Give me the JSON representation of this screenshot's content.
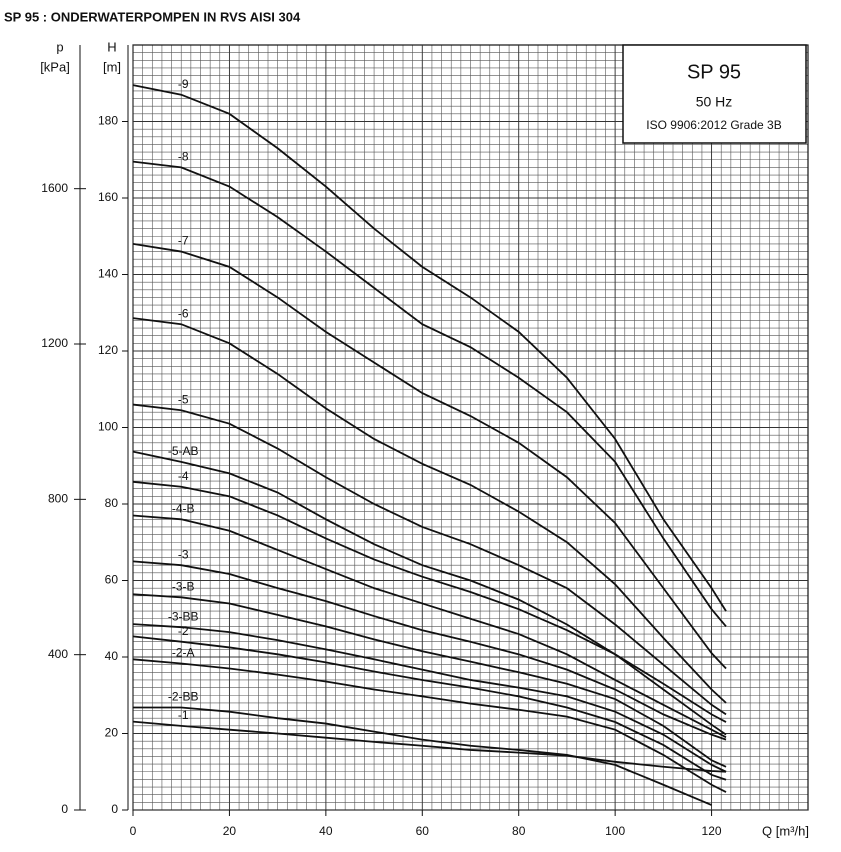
{
  "chart_data": {
    "type": "line",
    "title": "SP 95 : ONDERWATERPOMPEN IN RVS AISI 304",
    "annotations": [
      "SP 95",
      "50 Hz",
      "ISO 9906:2012 Grade 3B"
    ],
    "x_label": "Q [m³/h]",
    "y_label": "H",
    "y_unit": "[m]",
    "y2_label": "p",
    "y2_unit": "[kPa]",
    "x": [
      0,
      10,
      20,
      30,
      40,
      50,
      60,
      70,
      80,
      90,
      100,
      110,
      120,
      123
    ],
    "xlim": [
      0,
      140
    ],
    "xticks": [
      0,
      20,
      40,
      60,
      80,
      100,
      120
    ],
    "ylim": [
      0,
      200
    ],
    "yticks": [
      0,
      20,
      40,
      60,
      80,
      100,
      120,
      140,
      160,
      180
    ],
    "y2lim": [
      0,
      1970
    ],
    "y2ticks": [
      0,
      400,
      800,
      1200,
      1600
    ],
    "grid": true,
    "series": [
      {
        "name": "-9",
        "color": "#111111",
        "values": [
          189.5,
          187,
          182,
          173,
          163,
          152,
          142,
          134,
          125,
          113,
          97,
          76,
          58,
          52
        ]
      },
      {
        "name": "-8",
        "color": "#111111",
        "values": [
          169.5,
          168,
          163,
          155,
          146,
          136.5,
          127,
          121,
          113,
          104,
          91,
          71,
          52.5,
          48
        ]
      },
      {
        "name": "-7",
        "color": "#111111",
        "values": [
          148,
          146,
          142,
          134,
          125,
          117,
          109,
          103,
          96,
          87,
          75,
          58,
          41,
          37
        ]
      },
      {
        "name": "-6",
        "color": "#111111",
        "values": [
          128.6,
          127,
          122,
          114,
          105,
          97,
          90.5,
          85,
          78,
          70,
          59,
          45,
          31.5,
          28
        ]
      },
      {
        "name": "-5",
        "color": "#111111",
        "values": [
          106,
          104.5,
          101,
          94.5,
          87,
          80,
          74,
          69.5,
          64,
          58,
          48.5,
          38,
          27.5,
          25
        ]
      },
      {
        "name": "-5-AB",
        "color": "#111111",
        "values": [
          93.7,
          91,
          88,
          83,
          76,
          69.5,
          64,
          60,
          55,
          48.5,
          40.7,
          31.5,
          22.3,
          19.7
        ]
      },
      {
        "name": "-4",
        "color": "#111111",
        "values": [
          85.8,
          84.5,
          82,
          77,
          71,
          65.5,
          61,
          57,
          52.5,
          47,
          40.7,
          33,
          25,
          23
        ]
      },
      {
        "name": "-4-B",
        "color": "#111111",
        "values": [
          77,
          76,
          73,
          68,
          63,
          58,
          54,
          50,
          46,
          40.7,
          34,
          27.5,
          21,
          19
        ]
      },
      {
        "name": "-3",
        "color": "#111111",
        "values": [
          65,
          64,
          61.7,
          58,
          54.6,
          50.7,
          47,
          44,
          40.7,
          36.7,
          31.5,
          25,
          19.7,
          18.4
        ]
      },
      {
        "name": "-3-B",
        "color": "#111111",
        "values": [
          56.4,
          55.6,
          54,
          51,
          48,
          44.6,
          41.5,
          38.8,
          36,
          33,
          29,
          22,
          13,
          11.3
        ]
      },
      {
        "name": "-3-BB",
        "color": "#111111",
        "values": [
          48.6,
          47.8,
          46.5,
          44.4,
          42,
          39.4,
          36.7,
          34,
          32,
          29.7,
          25.7,
          19.7,
          11.8,
          10
        ]
      },
      {
        "name": "-2",
        "color": "#111111",
        "values": [
          45.4,
          44,
          42.5,
          40.7,
          38.6,
          36.2,
          34,
          32,
          29.7,
          26.8,
          23,
          17,
          9.2,
          7.9
        ]
      },
      {
        "name": "-2-A",
        "color": "#111111",
        "values": [
          39.4,
          38.3,
          37,
          35.4,
          33.6,
          31.5,
          29.7,
          27.8,
          26.2,
          24.4,
          21,
          14.4,
          6.6,
          4.7
        ]
      },
      {
        "name": "-2-BB",
        "color": "#111111",
        "values": [
          26.8,
          26.8,
          25.7,
          24,
          22.6,
          20.5,
          18.4,
          16.8,
          15.7,
          14.4,
          11.8,
          6.6,
          1.3,
          null
        ]
      },
      {
        "name": "-1",
        "color": "#111111",
        "values": [
          23.1,
          22,
          21,
          20,
          18.9,
          17.8,
          16.8,
          15.7,
          15,
          14.2,
          12.6,
          11.3,
          10.2,
          10
        ]
      }
    ]
  }
}
